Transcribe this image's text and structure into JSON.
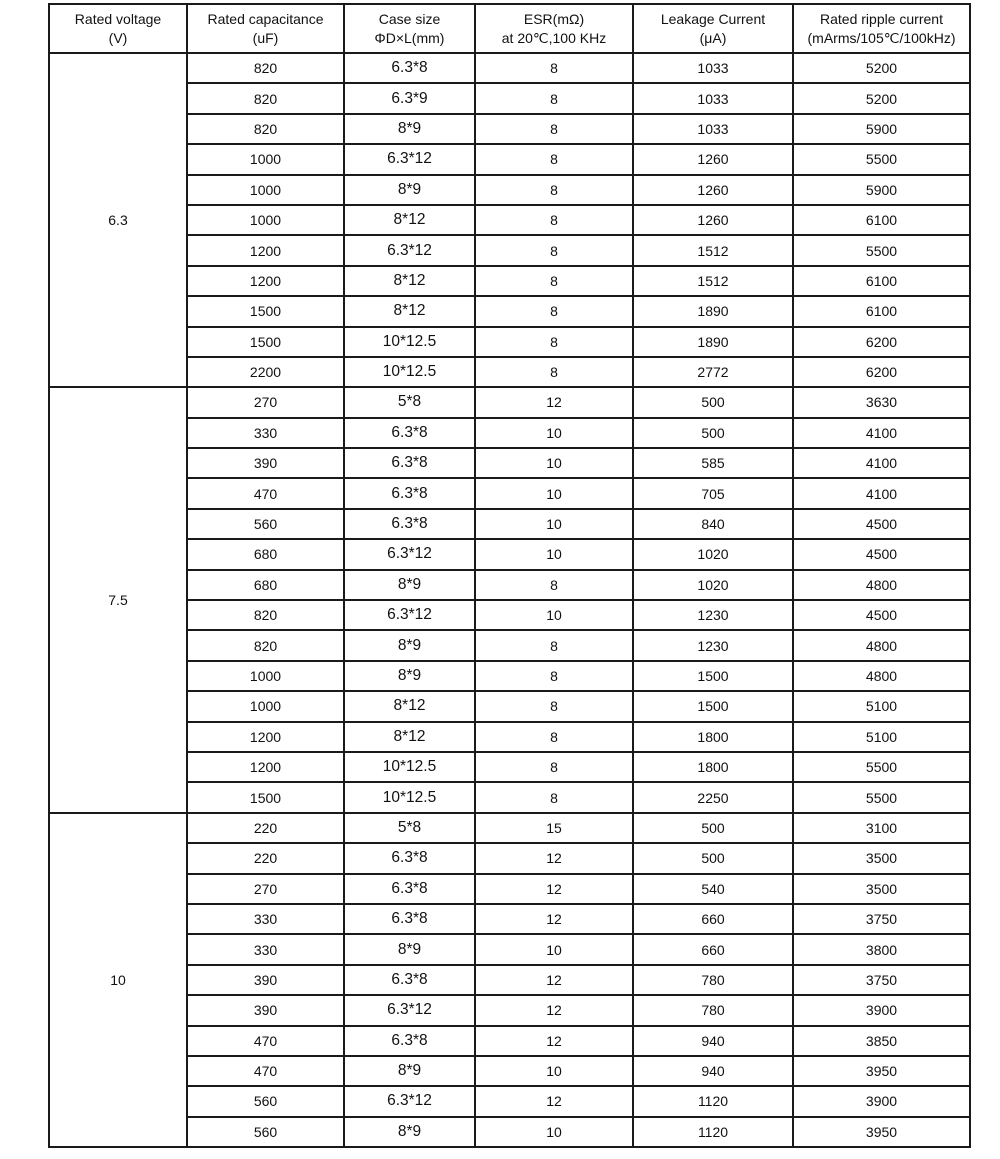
{
  "table": {
    "headers": [
      [
        "Rated voltage",
        "(V)"
      ],
      [
        "Rated capacitance",
        "(uF)"
      ],
      [
        "Case  size",
        "ΦD×L(mm)"
      ],
      [
        "ESR(mΩ)",
        "at 20℃,100 KHz"
      ],
      [
        "Leakage Current",
        "(μA)"
      ],
      [
        "Rated ripple current",
        "(mArms/105℃/100kHz)"
      ]
    ],
    "groups": [
      {
        "voltage": "6.3",
        "rows": [
          [
            "820",
            "6.3*8",
            "8",
            "1033",
            "5200"
          ],
          [
            "820",
            "6.3*9",
            "8",
            "1033",
            "5200"
          ],
          [
            "820",
            "8*9",
            "8",
            "1033",
            "5900"
          ],
          [
            "1000",
            "6.3*12",
            "8",
            "1260",
            "5500"
          ],
          [
            "1000",
            "8*9",
            "8",
            "1260",
            "5900"
          ],
          [
            "1000",
            "8*12",
            "8",
            "1260",
            "6100"
          ],
          [
            "1200",
            "6.3*12",
            "8",
            "1512",
            "5500"
          ],
          [
            "1200",
            "8*12",
            "8",
            "1512",
            "6100"
          ],
          [
            "1500",
            "8*12",
            "8",
            "1890",
            "6100"
          ],
          [
            "1500",
            "10*12.5",
            "8",
            "1890",
            "6200"
          ],
          [
            "2200",
            "10*12.5",
            "8",
            "2772",
            "6200"
          ]
        ]
      },
      {
        "voltage": "7.5",
        "rows": [
          [
            "270",
            "5*8",
            "12",
            "500",
            "3630"
          ],
          [
            "330",
            "6.3*8",
            "10",
            "500",
            "4100"
          ],
          [
            "390",
            "6.3*8",
            "10",
            "585",
            "4100"
          ],
          [
            "470",
            "6.3*8",
            "10",
            "705",
            "4100"
          ],
          [
            "560",
            "6.3*8",
            "10",
            "840",
            "4500"
          ],
          [
            "680",
            "6.3*12",
            "10",
            "1020",
            "4500"
          ],
          [
            "680",
            "8*9",
            "8",
            "1020",
            "4800"
          ],
          [
            "820",
            "6.3*12",
            "10",
            "1230",
            "4500"
          ],
          [
            "820",
            "8*9",
            "8",
            "1230",
            "4800"
          ],
          [
            "1000",
            "8*9",
            "8",
            "1500",
            "4800"
          ],
          [
            "1000",
            "8*12",
            "8",
            "1500",
            "5100"
          ],
          [
            "1200",
            "8*12",
            "8",
            "1800",
            "5100"
          ],
          [
            "1200",
            "10*12.5",
            "8",
            "1800",
            "5500"
          ],
          [
            "1500",
            "10*12.5",
            "8",
            "2250",
            "5500"
          ]
        ]
      },
      {
        "voltage": "10",
        "rows": [
          [
            "220",
            "5*8",
            "15",
            "500",
            "3100"
          ],
          [
            "220",
            "6.3*8",
            "12",
            "500",
            "3500"
          ],
          [
            "270",
            "6.3*8",
            "12",
            "540",
            "3500"
          ],
          [
            "330",
            "6.3*8",
            "12",
            "660",
            "3750"
          ],
          [
            "330",
            "8*9",
            "10",
            "660",
            "3800"
          ],
          [
            "390",
            "6.3*8",
            "12",
            "780",
            "3750"
          ],
          [
            "390",
            "6.3*12",
            "12",
            "780",
            "3900"
          ],
          [
            "470",
            "6.3*8",
            "12",
            "940",
            "3850"
          ],
          [
            "470",
            "8*9",
            "10",
            "940",
            "3950"
          ],
          [
            "560",
            "6.3*12",
            "12",
            "1120",
            "3900"
          ],
          [
            "560",
            "8*9",
            "10",
            "1120",
            "3950"
          ]
        ]
      }
    ]
  }
}
